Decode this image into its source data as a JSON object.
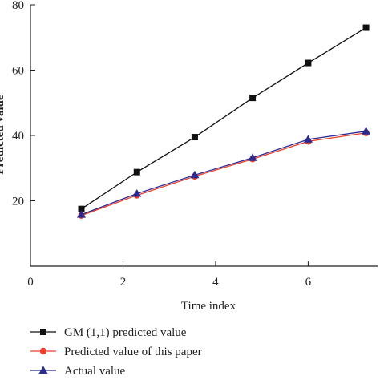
{
  "chart_data": {
    "type": "line",
    "title": "",
    "xlabel": "Time index",
    "ylabel": "Predicted value",
    "xlim": [
      0,
      7.5
    ],
    "ylim": [
      0,
      80
    ],
    "xticks": [
      0,
      2,
      4,
      6
    ],
    "yticks": [
      20,
      40,
      60,
      80
    ],
    "x": [
      1.1,
      2.3,
      3.55,
      4.8,
      6.0,
      7.25
    ],
    "grid": false,
    "legend_position": "bottom-left",
    "series": [
      {
        "name": "GM (1,1) predicted value",
        "values": [
          17.5,
          28.8,
          39.5,
          51.5,
          62.2,
          73.0
        ],
        "color": "#111111",
        "marker": "square"
      },
      {
        "name": "Predicted value of this paper",
        "values": [
          15.5,
          21.7,
          27.5,
          32.8,
          38.2,
          40.8
        ],
        "color": "#e8402a",
        "marker": "circle"
      },
      {
        "name": "Actual value",
        "values": [
          15.8,
          22.2,
          27.9,
          33.2,
          38.8,
          41.3
        ],
        "color": "#2b2b8f",
        "marker": "triangle"
      }
    ]
  }
}
